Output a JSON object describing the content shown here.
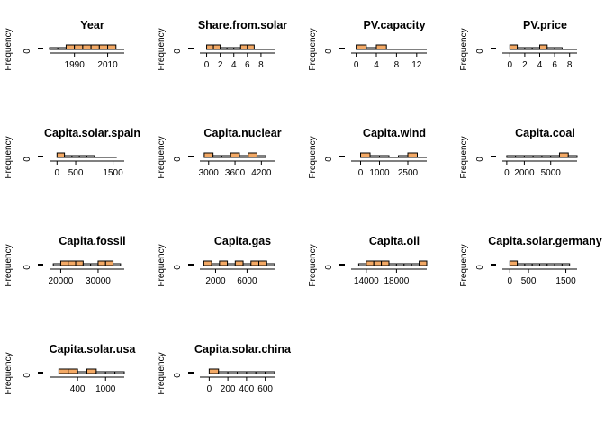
{
  "chart_data": [
    {
      "type": "histogram",
      "title": "Year",
      "ylabel": "Frequency",
      "xlim": [
        1975,
        2020
      ],
      "xticks": [
        1990,
        2010
      ],
      "bins": [
        1975,
        1980,
        1985,
        1990,
        1995,
        2000,
        2005,
        2010,
        2015,
        2020
      ],
      "counts": [
        1,
        1,
        2,
        2,
        2,
        2,
        2,
        2,
        0
      ],
      "yticks": [
        0
      ],
      "bar_color": "#ffffff"
    },
    {
      "type": "histogram",
      "title": "Share.from.solar",
      "ylabel": "Frequency",
      "xlim": [
        -1,
        10
      ],
      "xticks": [
        0,
        2,
        4,
        6,
        8
      ],
      "bins": [
        0,
        1,
        2,
        3,
        4,
        5,
        6,
        7,
        8,
        9,
        10
      ],
      "counts": [
        2,
        2,
        1,
        1,
        1,
        2,
        2,
        0,
        0,
        0
      ],
      "yticks": [
        0
      ],
      "bar_color": "#ffffff"
    },
    {
      "type": "histogram",
      "title": "PV.capacity",
      "ylabel": "Frequency",
      "xlim": [
        -1,
        14
      ],
      "xticks": [
        0,
        4,
        8,
        12
      ],
      "bins": [
        0,
        2,
        4,
        6,
        8,
        10,
        12,
        14
      ],
      "counts": [
        2,
        1,
        2,
        0,
        0,
        0,
        0
      ],
      "yticks": [
        0
      ],
      "bar_color": "#ffffff"
    },
    {
      "type": "histogram",
      "title": "PV.price",
      "ylabel": "Frequency",
      "xlim": [
        -1,
        9
      ],
      "xticks": [
        0,
        2,
        4,
        6,
        8
      ],
      "bins": [
        0,
        1,
        2,
        3,
        4,
        5,
        6,
        7,
        8,
        9
      ],
      "counts": [
        2,
        1,
        1,
        1,
        2,
        1,
        1,
        0,
        0
      ],
      "yticks": [
        0
      ],
      "bar_color": "#ffffff"
    },
    {
      "type": "histogram",
      "title": "Capita.solar.spain",
      "ylabel": "Frequency",
      "xlim": [
        -200,
        1800
      ],
      "xticks": [
        0,
        500,
        1500
      ],
      "bins": [
        0,
        200,
        400,
        600,
        800,
        1000,
        1200,
        1400,
        1600
      ],
      "counts": [
        2,
        1,
        1,
        1,
        1,
        0,
        0,
        0
      ],
      "yticks": [
        0
      ],
      "bar_color": "#ffffff"
    },
    {
      "type": "histogram",
      "title": "Capita.nuclear",
      "ylabel": "Frequency",
      "xlim": [
        2800,
        4500
      ],
      "xticks": [
        3000,
        3600,
        4200
      ],
      "bins": [
        2900,
        3100,
        3300,
        3500,
        3700,
        3900,
        4100,
        4300
      ],
      "counts": [
        2,
        1,
        1,
        2,
        1,
        2,
        1
      ],
      "yticks": [
        0
      ],
      "bar_color": "#ffffff"
    },
    {
      "type": "histogram",
      "title": "Capita.wind",
      "ylabel": "Frequency",
      "xlim": [
        -500,
        3500
      ],
      "xticks": [
        0,
        1000,
        2500
      ],
      "bins": [
        0,
        500,
        1000,
        1500,
        2000,
        2500,
        3000,
        3500
      ],
      "counts": [
        2,
        1,
        1,
        0,
        1,
        2,
        0
      ],
      "yticks": [
        0
      ],
      "bar_color": "#ffffff"
    },
    {
      "type": "histogram",
      "title": "Capita.coal",
      "ylabel": "Frequency",
      "xlim": [
        -500,
        8000
      ],
      "xticks": [
        0,
        2000,
        5000
      ],
      "bins": [
        0,
        1000,
        2000,
        3000,
        4000,
        5000,
        6000,
        7000,
        8000
      ],
      "counts": [
        1,
        1,
        1,
        1,
        1,
        1,
        2,
        1
      ],
      "yticks": [
        0
      ],
      "bar_color": "#ffffff"
    },
    {
      "type": "histogram",
      "title": "Capita.fossil",
      "ylabel": "Frequency",
      "xlim": [
        17000,
        37000
      ],
      "xticks": [
        20000,
        30000
      ],
      "bins": [
        18000,
        20000,
        22000,
        24000,
        26000,
        28000,
        30000,
        32000,
        34000,
        36000
      ],
      "counts": [
        1,
        2,
        2,
        2,
        1,
        1,
        2,
        2,
        1
      ],
      "yticks": [
        0
      ],
      "bar_color": "#ffffff"
    },
    {
      "type": "histogram",
      "title": "Capita.gas",
      "ylabel": "Frequency",
      "xlim": [
        0,
        9500
      ],
      "xticks": [
        2000,
        6000
      ],
      "bins": [
        500,
        1500,
        2500,
        3500,
        4500,
        5500,
        6500,
        7500,
        8500,
        9500
      ],
      "counts": [
        2,
        1,
        2,
        1,
        2,
        1,
        2,
        2,
        1
      ],
      "yticks": [
        0
      ],
      "bar_color": "#ffffff"
    },
    {
      "type": "histogram",
      "title": "Capita.oil",
      "ylabel": "Frequency",
      "xlim": [
        12000,
        22000
      ],
      "xticks": [
        14000,
        18000
      ],
      "bins": [
        13000,
        14000,
        15000,
        16000,
        17000,
        18000,
        19000,
        20000,
        21000,
        22000
      ],
      "counts": [
        1,
        2,
        2,
        2,
        1,
        1,
        1,
        1,
        2
      ],
      "yticks": [
        0
      ],
      "bar_color": "#ffffff"
    },
    {
      "type": "histogram",
      "title": "Capita.solar.germany",
      "ylabel": "Frequency",
      "xlim": [
        -200,
        1800
      ],
      "xticks": [
        0,
        500,
        1500
      ],
      "bins": [
        0,
        200,
        400,
        600,
        800,
        1000,
        1200,
        1400,
        1600
      ],
      "counts": [
        2,
        1,
        1,
        1,
        1,
        1,
        1,
        1
      ],
      "yticks": [
        0
      ],
      "bar_color": "#ffffff"
    },
    {
      "type": "histogram",
      "title": "Capita.solar.usa",
      "ylabel": "Frequency",
      "xlim": [
        -200,
        1400
      ],
      "xticks": [
        400,
        1000
      ],
      "bins": [
        0,
        200,
        400,
        600,
        800,
        1000,
        1200,
        1400
      ],
      "counts": [
        2,
        2,
        1,
        2,
        1,
        1,
        1
      ],
      "yticks": [
        0
      ],
      "bar_color": "#ffffff"
    },
    {
      "type": "histogram",
      "title": "Capita.solar.china",
      "ylabel": "Frequency",
      "xlim": [
        -100,
        700
      ],
      "xticks": [
        0,
        200,
        400,
        600
      ],
      "bins": [
        0,
        100,
        200,
        300,
        400,
        500,
        600,
        700
      ],
      "counts": [
        2,
        1,
        1,
        1,
        1,
        1,
        1
      ],
      "yticks": [
        0
      ],
      "bar_color": "#ffffff"
    }
  ],
  "highlight_color": "#f3a965",
  "axis_color": "#000000"
}
